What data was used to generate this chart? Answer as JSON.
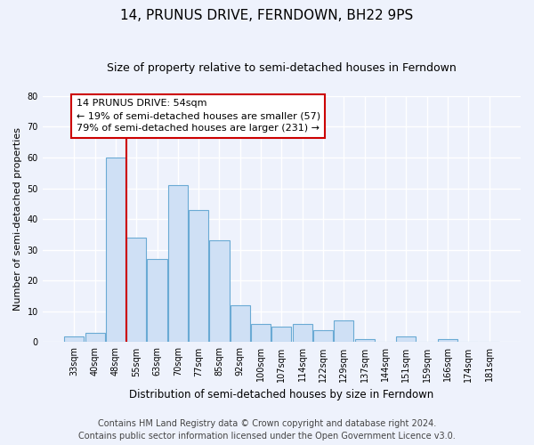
{
  "title": "14, PRUNUS DRIVE, FERNDOWN, BH22 9PS",
  "subtitle": "Size of property relative to semi-detached houses in Ferndown",
  "xlabel": "Distribution of semi-detached houses by size in Ferndown",
  "ylabel": "Number of semi-detached properties",
  "categories": [
    "33sqm",
    "40sqm",
    "48sqm",
    "55sqm",
    "63sqm",
    "70sqm",
    "77sqm",
    "85sqm",
    "92sqm",
    "100sqm",
    "107sqm",
    "114sqm",
    "122sqm",
    "129sqm",
    "137sqm",
    "144sqm",
    "151sqm",
    "159sqm",
    "166sqm",
    "174sqm",
    "181sqm"
  ],
  "values": [
    2,
    3,
    60,
    34,
    27,
    51,
    43,
    33,
    12,
    6,
    5,
    6,
    4,
    7,
    1,
    0,
    2,
    0,
    1,
    0,
    0
  ],
  "bar_color": "#cfe0f5",
  "bar_edge_color": "#6aaad4",
  "red_line_index": 2,
  "annotation_title": "14 PRUNUS DRIVE: 54sqm",
  "annotation_line1": "← 19% of semi-detached houses are smaller (57)",
  "annotation_line2": "79% of semi-detached houses are larger (231) →",
  "annotation_box_color": "#ffffff",
  "annotation_box_edge_color": "#cc0000",
  "red_line_color": "#cc0000",
  "ylim": [
    0,
    80
  ],
  "yticks": [
    0,
    10,
    20,
    30,
    40,
    50,
    60,
    70,
    80
  ],
  "footer_line1": "Contains HM Land Registry data © Crown copyright and database right 2024.",
  "footer_line2": "Contains public sector information licensed under the Open Government Licence v3.0.",
  "bg_color": "#eef2fc",
  "plot_bg_color": "#eef2fc",
  "grid_color": "#ffffff",
  "title_fontsize": 11,
  "subtitle_fontsize": 9,
  "axis_label_fontsize": 8,
  "tick_fontsize": 7,
  "annotation_fontsize": 8,
  "footer_fontsize": 7
}
